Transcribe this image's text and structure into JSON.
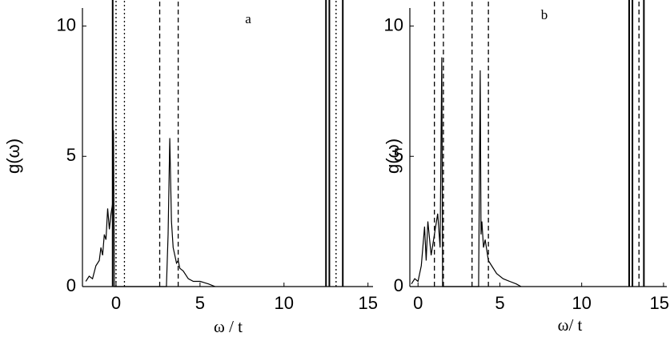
{
  "chart_data": [
    {
      "type": "line",
      "title": "a",
      "ylabel": "g(ω)",
      "xlabel": "ω / t",
      "xlim": [
        -2,
        15.3
      ],
      "ylim": [
        0,
        11
      ],
      "xticks": [
        0,
        5,
        10,
        15
      ],
      "yticks": [
        0,
        5,
        10
      ],
      "series": [
        {
          "color": "#000000",
          "x": [
            -1.8,
            -1.6,
            -1.4,
            -1.2,
            -1.0,
            -0.9,
            -0.8,
            -0.7,
            -0.6,
            -0.5,
            -0.4,
            -0.3,
            -0.2,
            -0.15,
            -0.1,
            3.0,
            3.1,
            3.2,
            3.25,
            3.3,
            3.4,
            3.5,
            3.6,
            3.7,
            3.8,
            4.0,
            4.3,
            4.6,
            5.0,
            5.5,
            5.9
          ],
          "values": [
            0.2,
            0.4,
            0.3,
            0.8,
            1.0,
            1.5,
            1.2,
            2.0,
            1.8,
            3.0,
            2.2,
            2.8,
            3.2,
            6.0,
            0,
            0,
            2.0,
            5.7,
            4.0,
            2.5,
            1.5,
            1.2,
            0.9,
            1.0,
            0.7,
            0.6,
            0.3,
            0.2,
            0.2,
            0.1,
            0
          ]
        }
      ],
      "vlines": [
        {
          "x": -0.2,
          "style": "solid"
        },
        {
          "x": 0.0,
          "style": "dotted"
        },
        {
          "x": 0.5,
          "style": "dotted"
        },
        {
          "x": 2.6,
          "style": "dashed"
        },
        {
          "x": 3.7,
          "style": "dashed"
        },
        {
          "x": 12.5,
          "style": "solid"
        },
        {
          "x": 12.7,
          "style": "solid"
        },
        {
          "x": 13.1,
          "style": "dotted"
        },
        {
          "x": 13.5,
          "style": "solid"
        }
      ]
    },
    {
      "type": "line",
      "title": "b",
      "ylabel": "g(ω)",
      "xlabel": "ω/ t",
      "xlim": [
        -0.5,
        15.2
      ],
      "ylim": [
        0,
        11
      ],
      "xticks": [
        0,
        5,
        10,
        15
      ],
      "yticks": [
        0,
        5,
        10
      ],
      "series": [
        {
          "color": "#000000",
          "x": [
            -0.4,
            -0.2,
            0,
            0.2,
            0.4,
            0.5,
            0.6,
            0.8,
            1.0,
            1.2,
            1.35,
            1.45,
            1.5,
            3.7,
            3.8,
            3.85,
            3.9,
            4.0,
            4.1,
            4.3,
            4.5,
            4.8,
            5.2,
            5.6,
            6.0,
            6.3
          ],
          "values": [
            0.1,
            0.3,
            0.2,
            0.8,
            2.3,
            1.0,
            2.5,
            1.2,
            2.0,
            2.8,
            1.5,
            8.8,
            0,
            0,
            8.3,
            2.0,
            2.5,
            1.5,
            1.8,
            1.0,
            0.8,
            0.5,
            0.3,
            0.2,
            0.1,
            0
          ]
        }
      ],
      "vlines": [
        {
          "x": 1.0,
          "style": "dashed"
        },
        {
          "x": 1.55,
          "style": "dashed"
        },
        {
          "x": 3.3,
          "style": "dashed"
        },
        {
          "x": 4.3,
          "style": "dashed"
        },
        {
          "x": 12.9,
          "style": "solid"
        },
        {
          "x": 13.1,
          "style": "solid"
        },
        {
          "x": 13.5,
          "style": "dashed"
        },
        {
          "x": 13.8,
          "style": "solid"
        }
      ]
    }
  ]
}
